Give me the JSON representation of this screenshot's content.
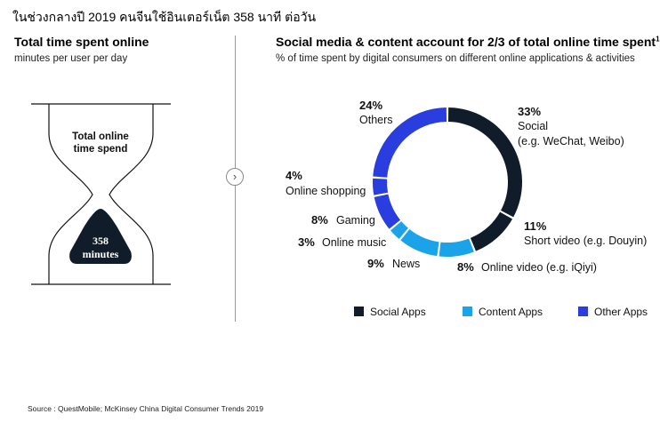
{
  "page_title": "ในช่วงกลางปี 2019 คนจีนใช้อินเตอร์เน็ต 358 นาที ต่อวัน",
  "left_panel": {
    "heading": "Total time spent online",
    "subheading": "minutes per user per day",
    "hourglass_label_line1": "Total online",
    "hourglass_label_line2": "time spend",
    "value_line1": "358",
    "value_line2": "minutes"
  },
  "right_panel": {
    "heading": "Social media & content account for 2/3 of total online time spent",
    "heading_sup": "1",
    "subheading": "% of time spent by digital consumers on different online applications & activities"
  },
  "colors": {
    "social": "#111c2a",
    "content": "#1aa3e8",
    "other": "#2a3dde"
  },
  "icons": {
    "next": "chevron-right-icon"
  },
  "chart_data": {
    "type": "pie",
    "variant": "donut",
    "unit": "%",
    "slices": [
      {
        "pct_label": "33%",
        "label": "Social",
        "detail": "(e.g. WeChat, Weibo)",
        "value": 33,
        "group": "Social Apps"
      },
      {
        "pct_label": "11%",
        "label": "Short video (e.g. Douyin)",
        "value": 11,
        "group": "Social Apps"
      },
      {
        "pct_label": "8%",
        "label": "Online video (e.g. iQiyi)",
        "value": 8,
        "group": "Content Apps"
      },
      {
        "pct_label": "9%",
        "label": "News",
        "value": 9,
        "group": "Content Apps"
      },
      {
        "pct_label": "3%",
        "label": "Online music",
        "value": 3,
        "group": "Content Apps"
      },
      {
        "pct_label": "8%",
        "label": "Gaming",
        "value": 8,
        "group": "Other Apps"
      },
      {
        "pct_label": "4%",
        "label": "Online shopping",
        "value": 4,
        "group": "Other Apps"
      },
      {
        "pct_label": "24%",
        "label": "Others",
        "value": 24,
        "group": "Other Apps"
      }
    ],
    "legend": [
      {
        "label": "Social Apps",
        "color": "#111c2a"
      },
      {
        "label": "Content Apps",
        "color": "#1aa3e8"
      },
      {
        "label": "Other Apps",
        "color": "#2a3dde"
      }
    ],
    "legend_position": "bottom"
  },
  "source": "Source : QuestMobile; McKinsey China Digital Consumer Trends 2019"
}
